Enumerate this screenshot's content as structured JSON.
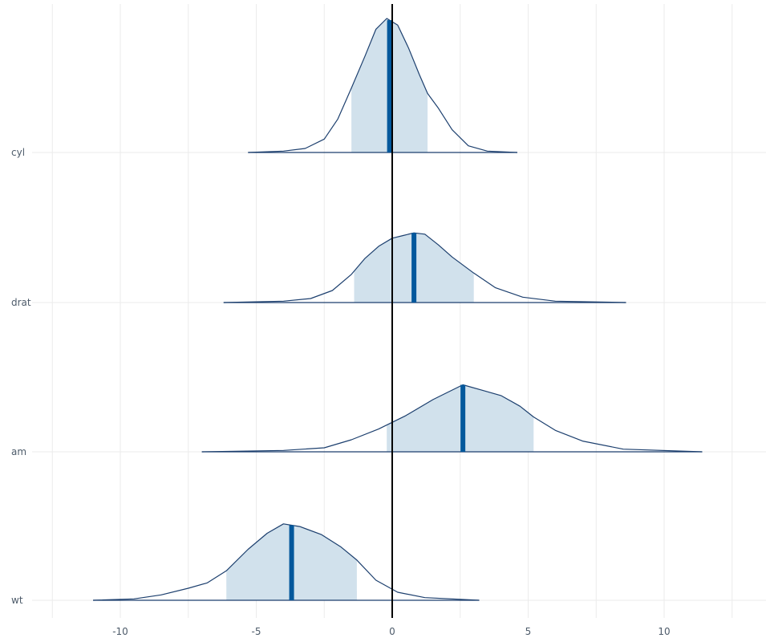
{
  "chart_data": {
    "type": "area",
    "title": "",
    "xlabel": "",
    "ylabel": "",
    "xlim": [
      -12.5,
      12.5
    ],
    "x_ticks": [
      -10,
      -5,
      0,
      5,
      10
    ],
    "x_tick_labels": [
      "-10",
      "-5",
      "0",
      "5",
      "10"
    ],
    "grid": true,
    "reference_line_x": 0,
    "colors": {
      "outline": "#1c3f6e",
      "fill": "#d1e1ec",
      "median": "#03589c",
      "grid": "#ebebeb",
      "zero_line": "#000000",
      "tick_text": "#4d5b6a"
    },
    "series": [
      {
        "name": "cyl",
        "median": -0.1,
        "interval": [
          -1.5,
          1.3
        ],
        "density_max": 1.0,
        "density": [
          [
            -5.3,
            0.0
          ],
          [
            -4.0,
            0.01
          ],
          [
            -3.2,
            0.03
          ],
          [
            -2.5,
            0.1
          ],
          [
            -2.0,
            0.25
          ],
          [
            -1.5,
            0.48
          ],
          [
            -1.0,
            0.72
          ],
          [
            -0.6,
            0.92
          ],
          [
            -0.2,
            1.0
          ],
          [
            0.2,
            0.95
          ],
          [
            0.6,
            0.78
          ],
          [
            1.0,
            0.58
          ],
          [
            1.3,
            0.44
          ],
          [
            1.7,
            0.33
          ],
          [
            2.2,
            0.17
          ],
          [
            2.8,
            0.05
          ],
          [
            3.5,
            0.01
          ],
          [
            4.6,
            0.0
          ]
        ]
      },
      {
        "name": "drat",
        "median": 0.8,
        "interval": [
          -1.4,
          3.0
        ],
        "density_max": 0.52,
        "density": [
          [
            -6.2,
            0.0
          ],
          [
            -4.0,
            0.01
          ],
          [
            -3.0,
            0.03
          ],
          [
            -2.2,
            0.09
          ],
          [
            -1.5,
            0.21
          ],
          [
            -1.0,
            0.33
          ],
          [
            -0.5,
            0.42
          ],
          [
            0.0,
            0.48
          ],
          [
            0.4,
            0.5
          ],
          [
            0.8,
            0.52
          ],
          [
            1.2,
            0.51
          ],
          [
            1.7,
            0.43
          ],
          [
            2.2,
            0.34
          ],
          [
            3.0,
            0.22
          ],
          [
            3.8,
            0.11
          ],
          [
            4.8,
            0.04
          ],
          [
            6.0,
            0.01
          ],
          [
            8.6,
            0.0
          ]
        ]
      },
      {
        "name": "am",
        "median": 2.6,
        "interval": [
          -0.2,
          5.2
        ],
        "density_max": 0.5,
        "density": [
          [
            -7.0,
            0.0
          ],
          [
            -4.0,
            0.01
          ],
          [
            -2.5,
            0.03
          ],
          [
            -1.5,
            0.09
          ],
          [
            -0.5,
            0.17
          ],
          [
            0.5,
            0.27
          ],
          [
            1.5,
            0.39
          ],
          [
            2.0,
            0.44
          ],
          [
            2.6,
            0.5
          ],
          [
            3.3,
            0.46
          ],
          [
            4.0,
            0.42
          ],
          [
            4.7,
            0.34
          ],
          [
            5.2,
            0.26
          ],
          [
            6.0,
            0.16
          ],
          [
            7.0,
            0.08
          ],
          [
            8.5,
            0.02
          ],
          [
            11.4,
            0.0
          ]
        ]
      },
      {
        "name": "wt",
        "median": -3.7,
        "interval": [
          -6.1,
          -1.3
        ],
        "density_max": 0.57,
        "density": [
          [
            -11.0,
            0.0
          ],
          [
            -9.5,
            0.01
          ],
          [
            -8.5,
            0.04
          ],
          [
            -7.5,
            0.09
          ],
          [
            -6.8,
            0.13
          ],
          [
            -6.1,
            0.22
          ],
          [
            -5.3,
            0.38
          ],
          [
            -4.6,
            0.5
          ],
          [
            -4.0,
            0.57
          ],
          [
            -3.4,
            0.55
          ],
          [
            -2.6,
            0.49
          ],
          [
            -1.9,
            0.4
          ],
          [
            -1.3,
            0.3
          ],
          [
            -0.6,
            0.15
          ],
          [
            0.2,
            0.06
          ],
          [
            1.2,
            0.02
          ],
          [
            3.2,
            0.0
          ]
        ]
      }
    ]
  }
}
